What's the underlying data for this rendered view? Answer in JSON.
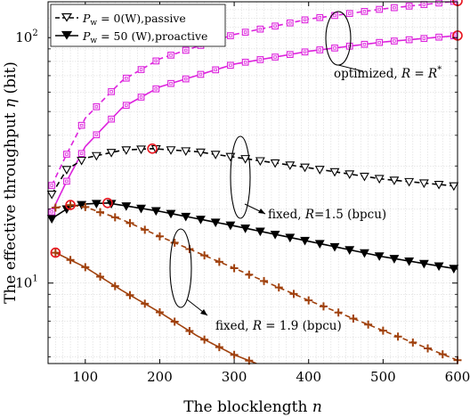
{
  "chart_data": {
    "type": "line",
    "xlabel": "The blocklength n",
    "xlabel_main": "The blocklength ",
    "xlabel_var": "n",
    "ylabel": "The effective throughput η (bit)",
    "ylabel_main": "The effective throughput ",
    "ylabel_var": "η",
    "ylabel_unit": " (bit)",
    "xlim": [
      50,
      600
    ],
    "ylim": [
      4.7,
      140
    ],
    "yscale": "log",
    "grid": true,
    "x_ticks": [
      100,
      200,
      300,
      400,
      500,
      600
    ],
    "y_ticks": [
      10,
      100
    ],
    "y_tick_labels": [
      {
        "base": "10",
        "exp": "1"
      },
      {
        "base": "10",
        "exp": "2"
      }
    ],
    "legend": {
      "placement": "top-left",
      "entries": [
        {
          "label_var": "P",
          "label_sub": "w",
          "label_rest": " = 0(W),passive",
          "line": "dashed",
          "marker": "triangle-down-open"
        },
        {
          "label_var": "P",
          "label_sub": "w",
          "label_rest": " = 50 (W),proactive",
          "line": "solid",
          "marker": "triangle-down-filled"
        }
      ]
    },
    "annotations": [
      {
        "text_main": "optimized, ",
        "text_var": "R",
        "text_rest": " = ",
        "text_var2": "R",
        "text_sup": "*"
      },
      {
        "text_main": "fixed, ",
        "text_var": "R",
        "text_rest": "=1.5 (bpcu)"
      },
      {
        "text_main": "fixed, ",
        "text_var": "R",
        "text_rest": " = 1.9 (bpcu)"
      }
    ],
    "colors": {
      "optimized": "#dd22dd",
      "fixed_1_5": "#000000",
      "fixed_1_9": "#a0410d",
      "optimum_marker": "#e8141e",
      "grid": "#d9d9d9"
    },
    "series": [
      {
        "group": "optimized",
        "mode": "passive",
        "x": [
          55,
          75,
          100,
          150,
          200,
          300,
          400,
          500,
          600
        ],
        "y": [
          25,
          33.5,
          47,
          67,
          82,
          103,
          119,
          131,
          141
        ]
      },
      {
        "group": "optimized",
        "mode": "proactive",
        "x": [
          55,
          75,
          100,
          150,
          200,
          300,
          400,
          500,
          600
        ],
        "y": [
          19.5,
          26,
          36,
          52,
          63,
          78,
          88,
          96,
          102
        ]
      },
      {
        "group": "fixed_1_5",
        "mode": "passive",
        "x": [
          55,
          75,
          100,
          150,
          190,
          250,
          300,
          400,
          500,
          600
        ],
        "y": [
          23,
          29,
          32.3,
          34.8,
          35.3,
          34.3,
          32.6,
          29.5,
          26.5,
          24.8
        ]
      },
      {
        "group": "fixed_1_5",
        "mode": "proactive",
        "x": [
          55,
          80,
          100,
          130,
          200,
          300,
          400,
          500,
          600
        ],
        "y": [
          18.3,
          20.5,
          21,
          21.2,
          19.6,
          17.1,
          14.8,
          12.8,
          11.4
        ]
      },
      {
        "group": "fixed_1_9",
        "mode": "passive",
        "x": [
          60,
          80,
          100,
          150,
          200,
          300,
          400,
          500,
          600
        ],
        "y": [
          20.3,
          20.8,
          20.4,
          18.1,
          15.5,
          11.5,
          8.5,
          6.4,
          4.85
        ]
      },
      {
        "group": "fixed_1_9",
        "mode": "proactive",
        "x": [
          60,
          100,
          150,
          200,
          250,
          300,
          330
        ],
        "y": [
          13.3,
          11.6,
          9.3,
          7.6,
          6.1,
          5.1,
          4.7
        ]
      }
    ],
    "optimum_points": [
      {
        "x": 190,
        "y": 35.3
      },
      {
        "x": 130,
        "y": 21.2
      },
      {
        "x": 80,
        "y": 20.8
      },
      {
        "x": 60,
        "y": 13.3
      },
      {
        "x": 600,
        "y": 141
      },
      {
        "x": 600,
        "y": 102
      }
    ]
  }
}
